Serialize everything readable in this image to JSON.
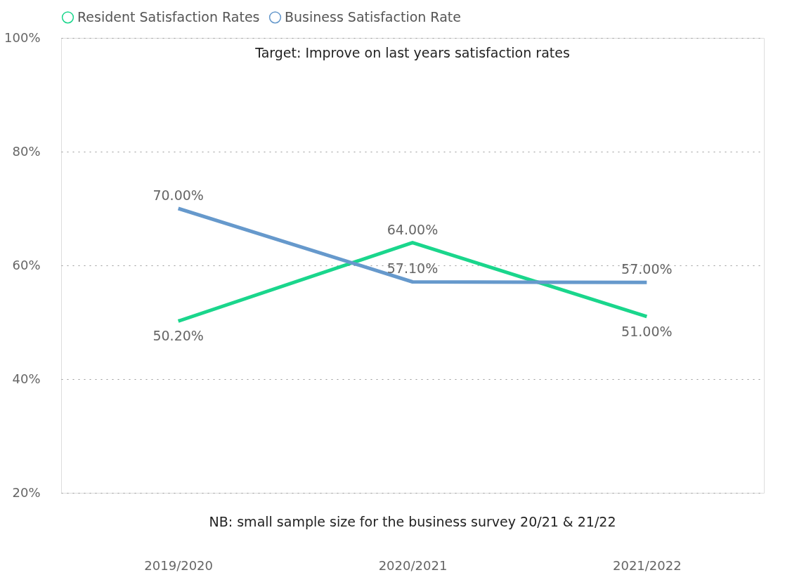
{
  "chart_data": {
    "type": "line",
    "categories": [
      "2019/2020",
      "2020/2021",
      "2021/2022"
    ],
    "series": [
      {
        "name": "Resident Satisfaction Rates",
        "color": "#1ad68c",
        "values": [
          50.2,
          64.0,
          51.0
        ],
        "value_labels": [
          "50.20%",
          "64.00%",
          "51.00%"
        ]
      },
      {
        "name": "Business Satisfaction Rate",
        "color": "#6699cc",
        "values": [
          70.0,
          57.1,
          57.0
        ],
        "value_labels": [
          "70.00%",
          "57.10%",
          "57.00%"
        ]
      }
    ],
    "ylim": [
      20,
      100
    ],
    "yticks": [
      {
        "value": 20,
        "label": "20%"
      },
      {
        "value": 40,
        "label": "40%"
      },
      {
        "value": 60,
        "label": "60%"
      },
      {
        "value": 80,
        "label": "80%"
      },
      {
        "value": 100,
        "label": "100%"
      }
    ],
    "grid": "y",
    "legend": "top",
    "marker": "none",
    "line_style": "solid",
    "annotations": [
      "Target: Improve on last years satisfaction rates",
      "NB: small sample size for the business survey 20/21 & 21/22"
    ]
  }
}
